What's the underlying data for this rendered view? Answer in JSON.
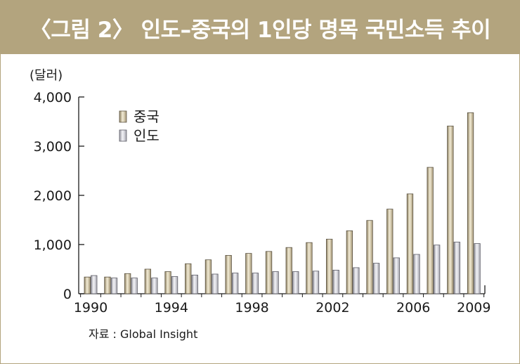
{
  "chart_data": {
    "type": "bar",
    "title": "〈그림 2〉 인도–중국의 1인당 명목 국민소득 추이",
    "ylabel": "(달러)",
    "xlabel": "",
    "ylim": [
      0,
      4000
    ],
    "yticks": [
      0,
      1000,
      2000,
      3000,
      4000
    ],
    "ytick_labels": [
      "0",
      "1,000",
      "2,000",
      "3,000",
      "4,000"
    ],
    "categories": [
      1990,
      1991,
      1992,
      1993,
      1994,
      1995,
      1996,
      1997,
      1998,
      1999,
      2000,
      2001,
      2002,
      2003,
      2004,
      2005,
      2006,
      2007,
      2008,
      2009
    ],
    "xtick_labels": [
      {
        "year": 1990,
        "label": "1990"
      },
      {
        "year": 1994,
        "label": "1994"
      },
      {
        "year": 1998,
        "label": "1998"
      },
      {
        "year": 2002,
        "label": "2002"
      },
      {
        "year": 2006,
        "label": "2006"
      },
      {
        "year": 2009,
        "label": "2009"
      }
    ],
    "series": [
      {
        "name": "중국",
        "color": "#cfc2a0",
        "values": [
          340,
          340,
          410,
          500,
          450,
          610,
          690,
          780,
          820,
          860,
          940,
          1040,
          1110,
          1280,
          1490,
          1720,
          2030,
          2570,
          3410,
          3680
        ]
      },
      {
        "name": "인도",
        "color": "#d0d0d6",
        "values": [
          370,
          320,
          320,
          320,
          350,
          380,
          400,
          420,
          420,
          450,
          450,
          460,
          480,
          530,
          620,
          730,
          800,
          990,
          1050,
          1020
        ]
      }
    ],
    "legend_position": "top-left",
    "grid": false
  },
  "source": "자료 : Global Insight"
}
